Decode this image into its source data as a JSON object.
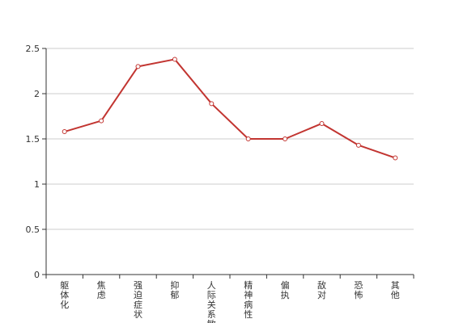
{
  "chart_data": {
    "type": "line",
    "title": "",
    "xlabel": "",
    "ylabel": "",
    "categories": [
      "躯体化",
      "焦虑",
      "强迫症状",
      "抑郁",
      "人际关系敏感",
      "精神病性",
      "偏执",
      "敌对",
      "恐怖",
      "其他"
    ],
    "series": [
      {
        "values": [
          1.58,
          1.7,
          2.3,
          2.38,
          1.89,
          1.5,
          1.5,
          1.67,
          1.43,
          1.29
        ]
      }
    ],
    "ylim": [
      0,
      2.5
    ],
    "yticks": [
      "0",
      "0.5",
      "1",
      "1.5",
      "2",
      "2.5"
    ],
    "grid": true,
    "legend": "none",
    "colors": {
      "line": "#c23531",
      "grid": "#cccccc",
      "axis": "#333333",
      "point_fill": "#ffffff"
    }
  }
}
